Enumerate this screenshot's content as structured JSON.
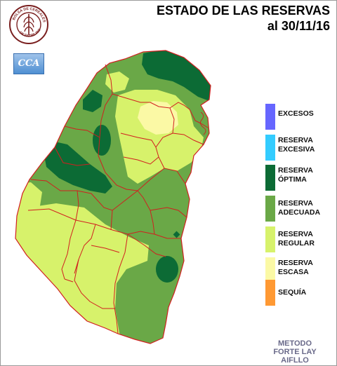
{
  "title": {
    "line1": "ESTADO DE LAS RESERVAS",
    "line2": "al 30/11/16"
  },
  "logos": {
    "seal_icon": "bolsa-cereales-seal-icon",
    "seal_text": "BOLSA DE CEREALES DE ENTRE RIOS",
    "cca_text": "CCA"
  },
  "legend": {
    "items": [
      {
        "label": "EXCESOS",
        "color": "#6666ff"
      },
      {
        "label": "RESERVA\nEXCESIVA",
        "color": "#33ccff"
      },
      {
        "label": "RESERVA\nÓPTIMA",
        "color": "#0c6b35"
      },
      {
        "label": "RESERVA\nADECUADA",
        "color": "#6aa847"
      },
      {
        "label": "RESERVA\nREGULAR",
        "color": "#d7f26b"
      },
      {
        "label": "RESERVA\nESCASA",
        "color": "#fbf9a5"
      },
      {
        "label": "SEQUÍA",
        "color": "#ff9933"
      }
    ]
  },
  "method": {
    "line1": "METODO",
    "line2": "FORTE LAY",
    "line3": "AIFLLO"
  }
}
